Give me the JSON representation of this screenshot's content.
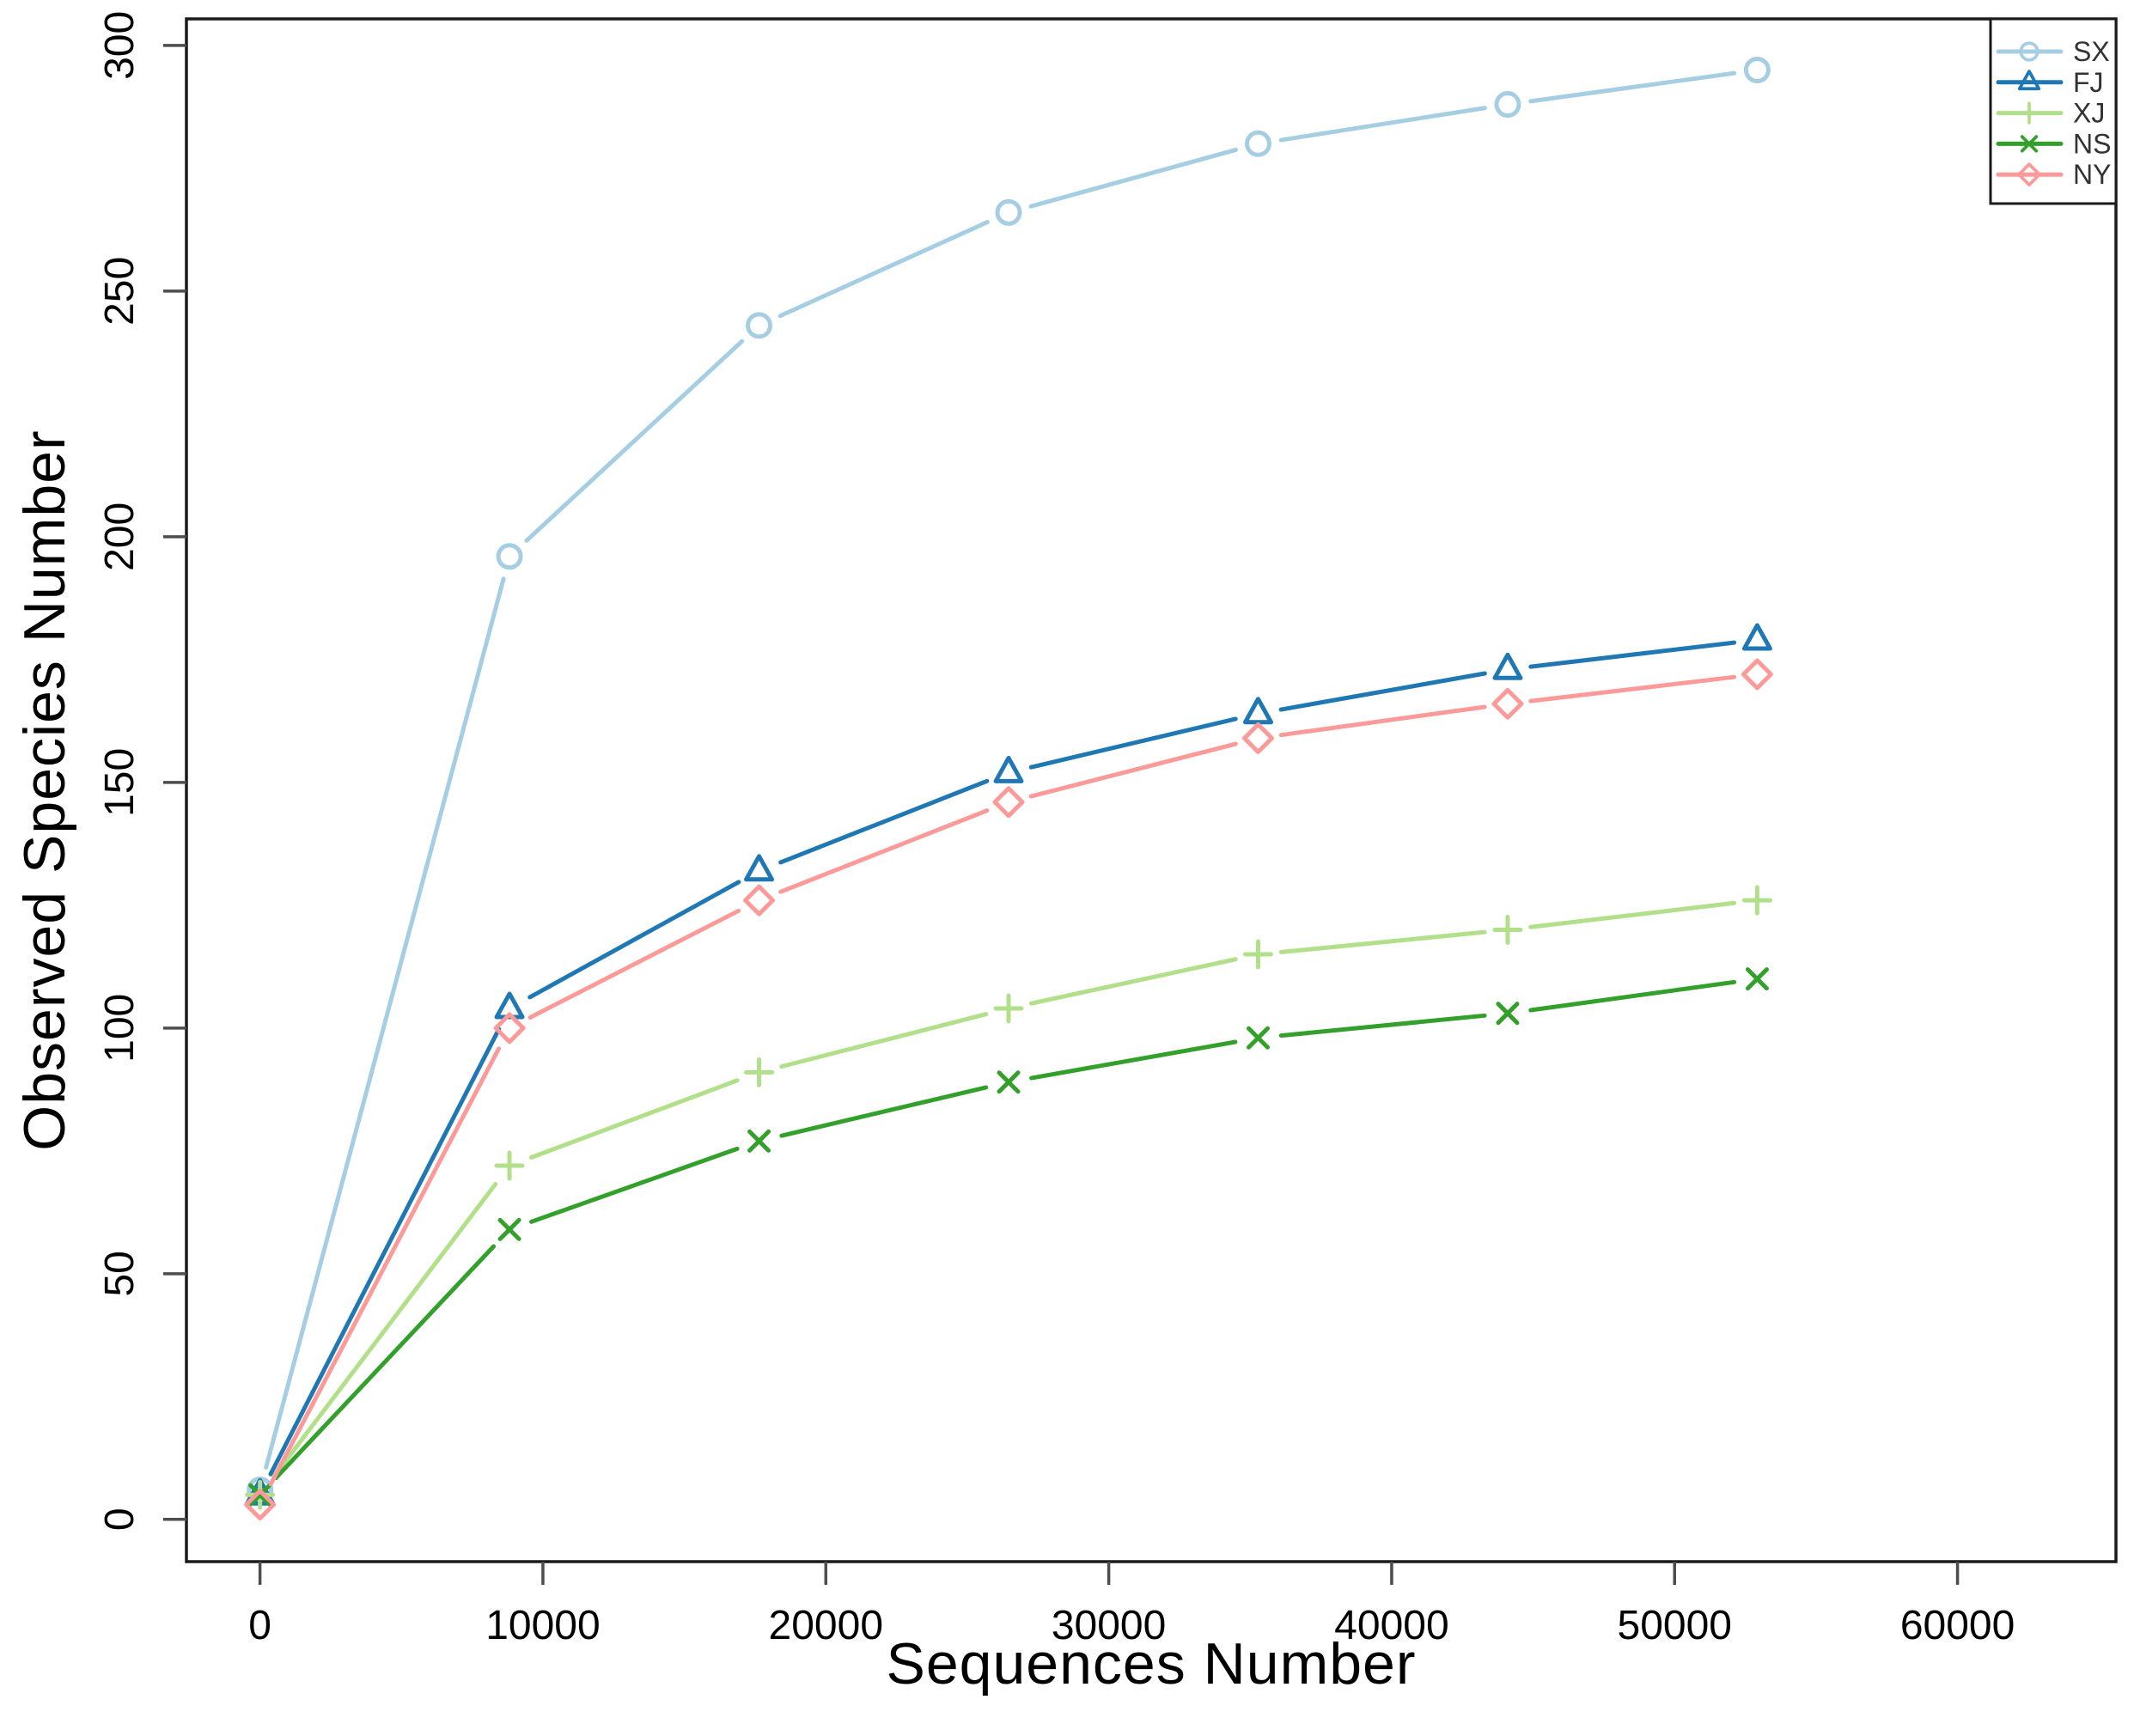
{
  "figure": {
    "background": "#ffffff",
    "border_color": "#1a1a1a",
    "tick_color": "#4d4d4d",
    "text_color": "#000000",
    "legend_text_color": "#333333"
  },
  "chart_data": {
    "type": "line",
    "title": "",
    "xlabel": "Sequences Number",
    "ylabel": "Observed Species Number",
    "x": [
      1,
      8820,
      17640,
      26460,
      35280,
      44100,
      52920
    ],
    "series": [
      {
        "name": "SX",
        "color": "#a6cee3",
        "marker": "circle",
        "values": [
          6,
          196,
          243,
          266,
          280,
          288,
          295
        ]
      },
      {
        "name": "FJ",
        "color": "#1f78b4",
        "marker": "triangle",
        "values": [
          5,
          104,
          132,
          152,
          164,
          173,
          179
        ]
      },
      {
        "name": "XJ",
        "color": "#b2df8a",
        "marker": "plus",
        "values": [
          5,
          72,
          91,
          104,
          115,
          120,
          126
        ]
      },
      {
        "name": "NS",
        "color": "#33a02c",
        "marker": "x",
        "values": [
          5,
          59,
          77,
          89,
          98,
          103,
          110
        ]
      },
      {
        "name": "NY",
        "color": "#fb9a99",
        "marker": "diamond",
        "values": [
          3,
          100,
          126,
          146,
          159,
          166,
          172
        ]
      }
    ],
    "x_ticks": [
      0,
      10000,
      20000,
      30000,
      40000,
      50000,
      60000
    ],
    "x_tick_labels": [
      "0",
      "10000",
      "20000",
      "30000",
      "40000",
      "50000",
      "60000"
    ],
    "y_ticks": [
      0,
      50,
      100,
      150,
      200,
      250,
      300
    ],
    "y_tick_labels": [
      "0",
      "50",
      "100",
      "150",
      "200",
      "250",
      "300"
    ],
    "xlim": [
      -2600,
      65600
    ],
    "ylim": [
      -8.6,
      305.4
    ],
    "grid": false,
    "legend_position": "top-right",
    "legend_labels": [
      "SX",
      "FJ",
      "XJ",
      "NS",
      "NY"
    ]
  }
}
